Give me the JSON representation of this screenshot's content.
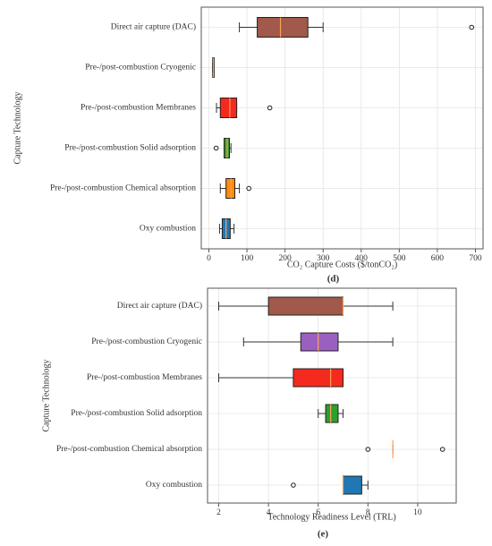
{
  "chart_data": [
    {
      "type": "box",
      "caption": "(d)",
      "x_label": "CO₂ Capture Costs ($/tonCO₂)",
      "y_label": "Capture Technology",
      "categories": [
        "Direct air capture (DAC)",
        "Pre-/post-combustion Cryogenic",
        "Pre-/post-combustion Membranes",
        "Pre-/post-combustion Solid adsorption",
        "Pre-/post-combustion Chemical absorption",
        "Oxy combustion"
      ],
      "colors": [
        "#a0594a",
        "#b5653d",
        "#f52a1e",
        "#2ca02c",
        "#ff8c0a",
        "#1f77b4"
      ],
      "median_color": "#ff9f5a",
      "boxes": [
        {
          "min": 80,
          "q1": 127,
          "median": 188,
          "q3": 260,
          "max": 300,
          "outliers": [
            690
          ]
        },
        {
          "min": 10,
          "q1": 10,
          "median": 12,
          "q3": 14,
          "max": 14,
          "outliers": []
        },
        {
          "min": 20,
          "q1": 30,
          "median": 55,
          "q3": 73,
          "max": 73,
          "outliers": [
            160
          ]
        },
        {
          "min": 40,
          "q1": 40,
          "median": 48,
          "q3": 54,
          "max": 58,
          "outliers": [
            19
          ]
        },
        {
          "min": 30,
          "q1": 45,
          "median": 58,
          "q3": 68,
          "max": 80,
          "outliers": [
            105
          ]
        },
        {
          "min": 28,
          "q1": 35,
          "median": 45,
          "q3": 56,
          "max": 66,
          "outliers": []
        }
      ],
      "xlim": [
        -20,
        720
      ],
      "xticks": [
        0,
        100,
        200,
        300,
        400,
        500,
        600,
        700
      ],
      "grid": true
    },
    {
      "type": "box",
      "caption": "(e)",
      "x_label": "Technology Readiness Level (TRL)",
      "y_label": "Capture Technology",
      "categories": [
        "Direct air capture (DAC)",
        "Pre-/post-combustion Cryogenic",
        "Pre-/post-combustion Membranes",
        "Pre-/post-combustion Solid adsorption",
        "Pre-/post-combustion Chemical absorption",
        "Oxy combustion"
      ],
      "colors": [
        "#a0594a",
        "#9b5fc0",
        "#f52a1e",
        "#2ca02c",
        "#ff8c0a",
        "#1f77b4"
      ],
      "median_color": "#ff9f5a",
      "boxes": [
        {
          "min": 2,
          "q1": 4,
          "median": 7,
          "q3": 7,
          "max": 9,
          "outliers": []
        },
        {
          "min": 3,
          "q1": 5.3,
          "median": 6,
          "q3": 6.8,
          "max": 9,
          "outliers": []
        },
        {
          "min": 2,
          "q1": 5,
          "median": 6.5,
          "q3": 7,
          "max": 7,
          "outliers": []
        },
        {
          "min": 6,
          "q1": 6.3,
          "median": 6.5,
          "q3": 6.8,
          "max": 7,
          "outliers": []
        },
        {
          "min": 9,
          "q1": 9,
          "median": 9,
          "q3": 9,
          "max": 9,
          "outliers": [
            8,
            11
          ]
        },
        {
          "min": 7,
          "q1": 7,
          "median": 7,
          "q3": 7.75,
          "max": 8,
          "outliers": [
            5
          ]
        }
      ],
      "xlim": [
        1.55,
        11.55
      ],
      "xticks": [
        2,
        4,
        6,
        8,
        10
      ],
      "grid": true
    }
  ]
}
